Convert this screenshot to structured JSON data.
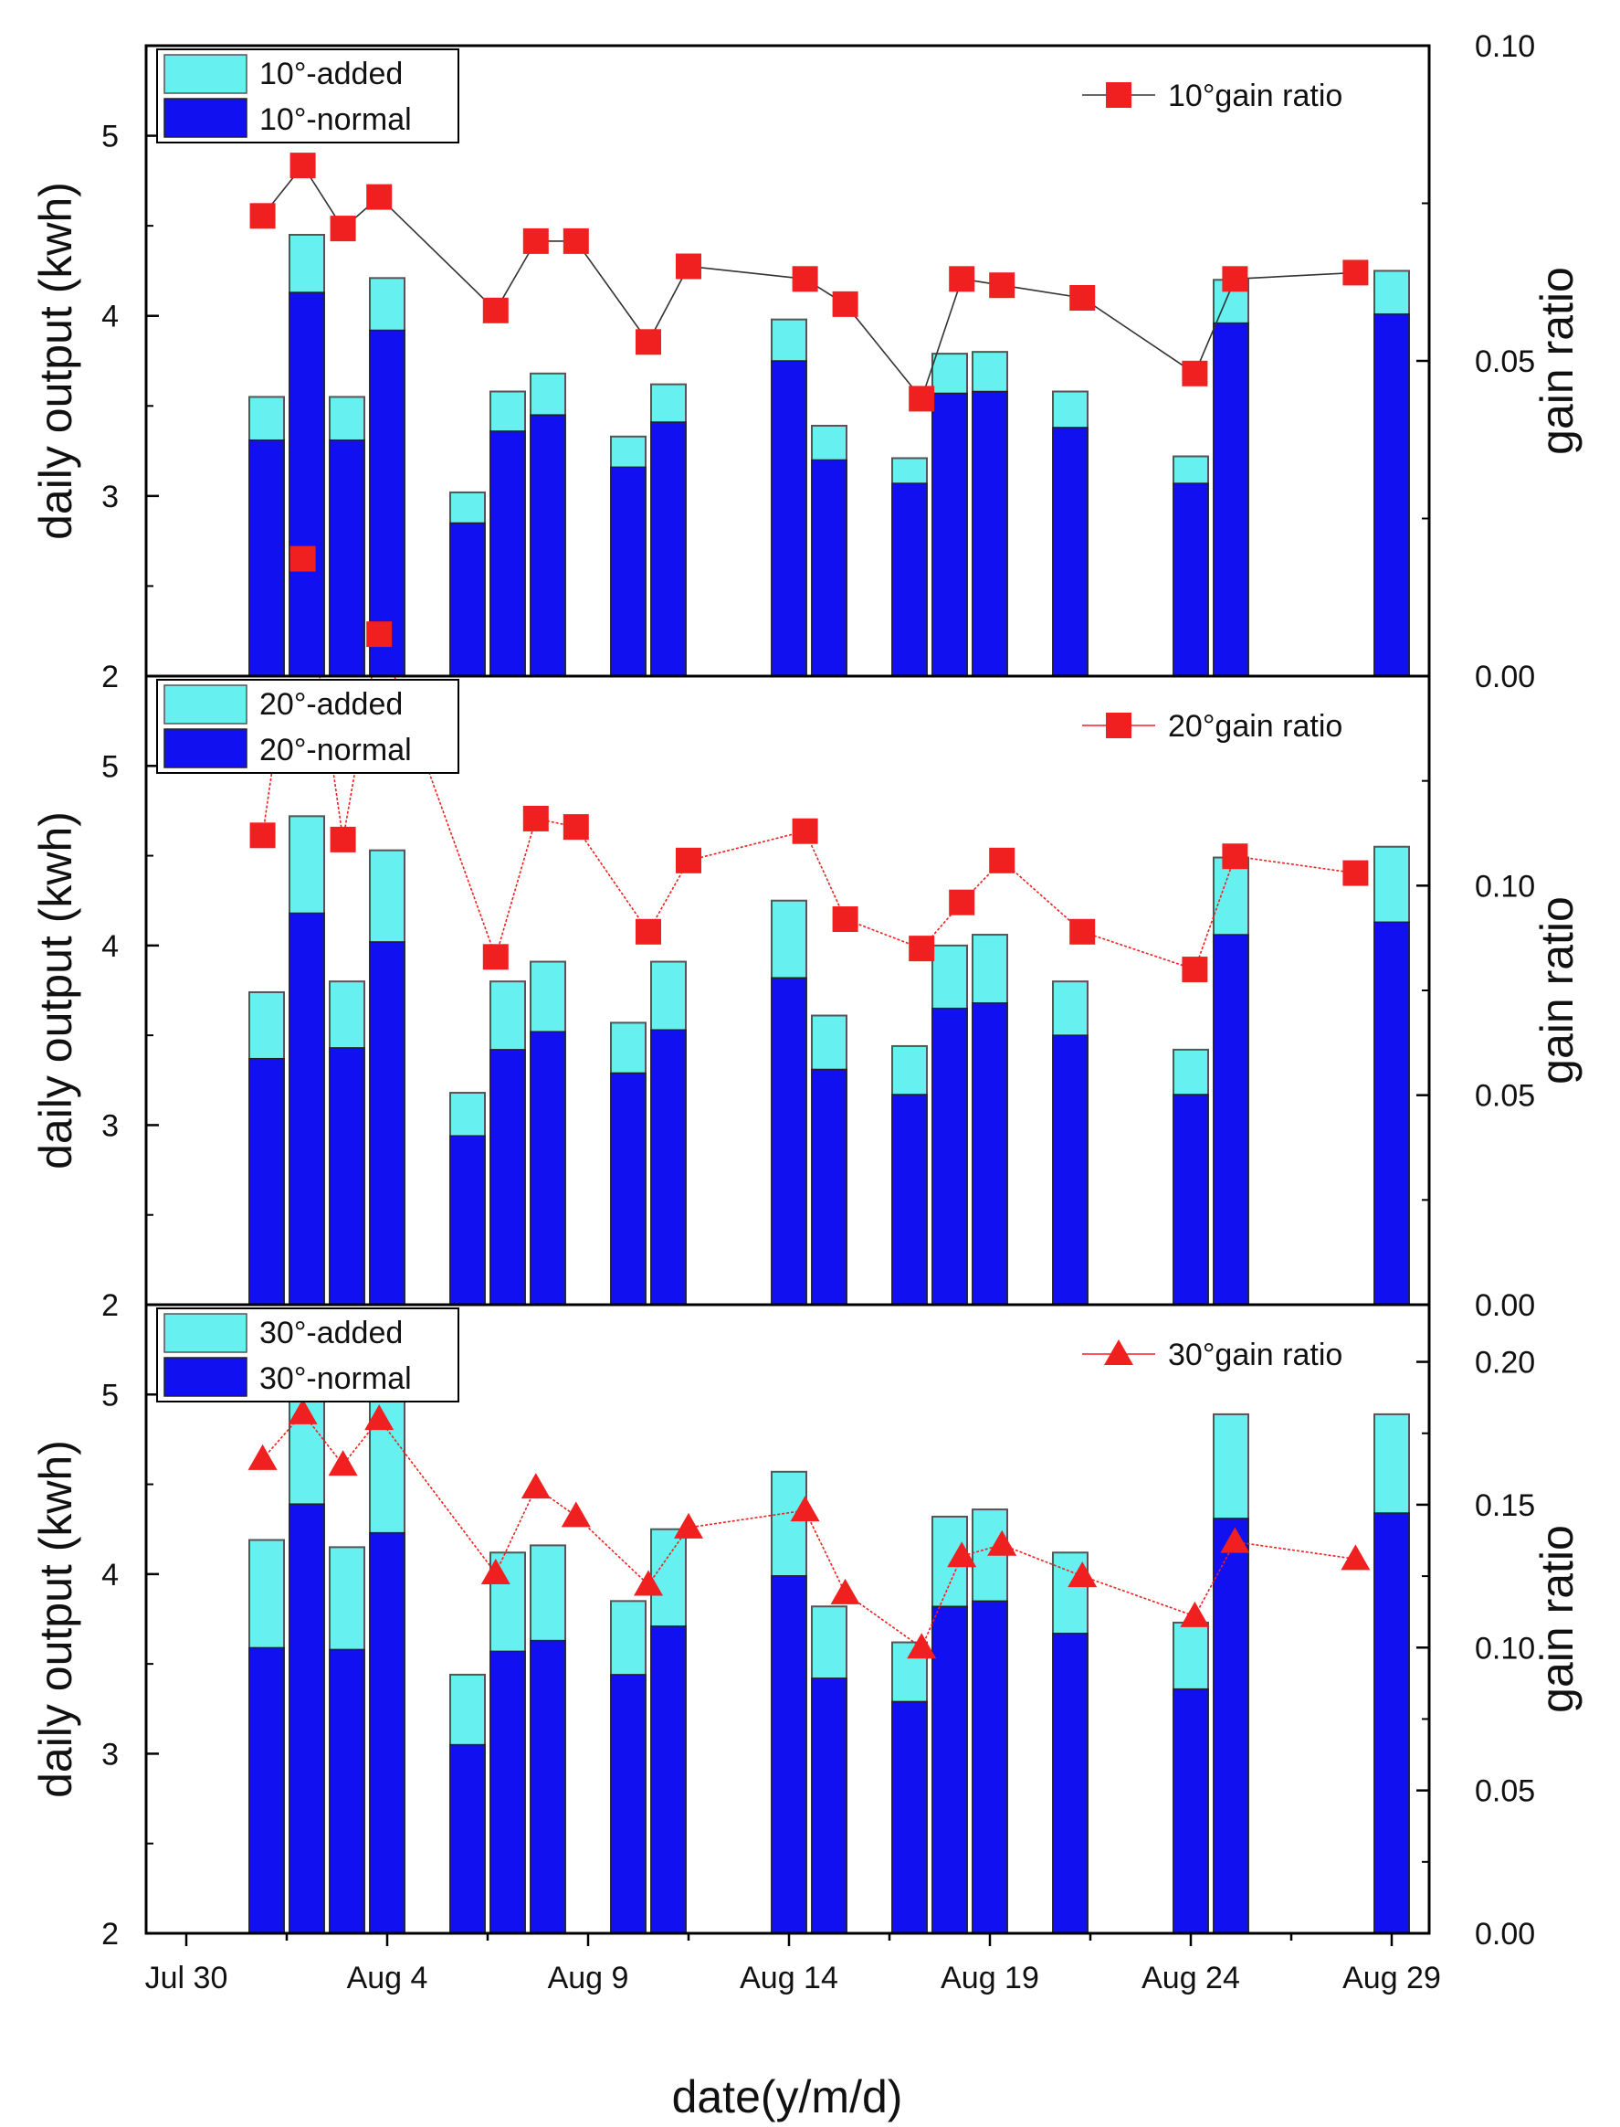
{
  "figure": {
    "xlabel": "date(y/m/d)",
    "x_tick_labels": [
      "Jul 30",
      "Aug 4",
      "Aug 9",
      "Aug 14",
      "Aug 19",
      "Aug 24",
      "Aug 29"
    ],
    "x_tick_values": [
      0,
      5,
      10,
      15,
      20,
      25,
      30
    ],
    "colors": {
      "added": "#66f0ef",
      "normal": "#1010f0",
      "gain": "#f02020",
      "gain_line_top": "#333333"
    }
  },
  "chart_data": [
    {
      "type": "bar",
      "panel": "10°",
      "ylabel": "daily output (kwh)",
      "y2label": "gain ratio",
      "ylim": [
        2,
        5.5
      ],
      "y_ticks": [
        2,
        3,
        4,
        5
      ],
      "y2lim": [
        0,
        0.1
      ],
      "y2_ticks": [
        "0.00",
        "0.05",
        "0.10"
      ],
      "legend": {
        "added": "10°-added",
        "normal": "10°-normal",
        "gain": "10°gain ratio"
      },
      "gain_marker": "square",
      "x": [
        2,
        3,
        4,
        5,
        7,
        8,
        9,
        11,
        12,
        15,
        16,
        18,
        19,
        20,
        22,
        25,
        26,
        30
      ],
      "totals": [
        3.55,
        4.45,
        3.55,
        4.21,
        3.02,
        3.58,
        3.68,
        3.33,
        3.62,
        3.98,
        3.39,
        3.21,
        3.79,
        3.8,
        3.58,
        3.22,
        4.2,
        4.25
      ],
      "normal": [
        3.31,
        4.13,
        3.31,
        3.92,
        2.85,
        3.36,
        3.45,
        3.16,
        3.41,
        3.75,
        3.2,
        3.07,
        3.57,
        3.58,
        3.38,
        3.07,
        3.96,
        4.01
      ],
      "gain_x": [
        1.9,
        2.9,
        3.9,
        4.8,
        7.7,
        8.7,
        9.7,
        11.5,
        12.5,
        15.4,
        16.4,
        18.3,
        19.3,
        20.3,
        22.3,
        25.1,
        26.1,
        29.1
      ],
      "gain_ratio": [
        0.073,
        0.081,
        0.071,
        0.076,
        0.058,
        0.069,
        0.069,
        0.053,
        0.065,
        0.063,
        0.059,
        0.044,
        0.063,
        0.062,
        0.06,
        0.048,
        0.063,
        0.064
      ]
    },
    {
      "type": "bar",
      "panel": "20°",
      "ylabel": "daily output (kwh)",
      "y2label": "gain ratio",
      "ylim": [
        2,
        5.5
      ],
      "y_ticks": [
        2,
        3,
        4,
        5
      ],
      "y2lim": [
        0,
        0.15
      ],
      "y2_ticks": [
        "0.00",
        "0.05",
        "0.10"
      ],
      "legend": {
        "added": "20°-added",
        "normal": "20°-normal",
        "gain": "20°gain ratio"
      },
      "gain_marker": "square",
      "x": [
        2,
        3,
        4,
        5,
        7,
        8,
        9,
        11,
        12,
        15,
        16,
        18,
        19,
        20,
        22,
        25,
        26,
        30
      ],
      "totals": [
        3.74,
        4.72,
        3.8,
        4.53,
        3.18,
        3.8,
        3.91,
        3.57,
        3.91,
        4.25,
        3.61,
        3.44,
        4.0,
        4.06,
        3.8,
        3.42,
        4.49,
        4.55
      ],
      "normal": [
        3.37,
        4.18,
        3.43,
        4.02,
        2.94,
        3.42,
        3.52,
        3.29,
        3.53,
        3.82,
        3.31,
        3.17,
        3.65,
        3.68,
        3.5,
        3.17,
        4.06,
        4.13
      ],
      "gain_x": [
        1.9,
        2.9,
        3.9,
        4.8,
        7.7,
        8.7,
        9.7,
        11.5,
        12.5,
        15.4,
        16.4,
        18.3,
        19.3,
        20.3,
        22.3,
        25.1,
        26.1,
        29.1
      ],
      "gain_ratio": [
        0.112,
        0.178,
        0.111,
        0.16,
        0.083,
        0.116,
        0.114,
        0.089,
        0.106,
        0.113,
        0.092,
        0.085,
        0.096,
        0.106,
        0.089,
        0.08,
        0.107,
        0.103
      ]
    },
    {
      "type": "bar",
      "panel": "30°",
      "ylabel": "daily output (kwh)",
      "y2label": "gain ratio",
      "ylim": [
        2,
        5.5
      ],
      "y_ticks": [
        2,
        3,
        4,
        5
      ],
      "y2lim": [
        0,
        0.22
      ],
      "y2_ticks": [
        "0.00",
        "0.05",
        "0.10",
        "0.15",
        "0.20"
      ],
      "legend": {
        "added": "30°-added",
        "normal": "30°-normal",
        "gain": "30°gain ratio"
      },
      "gain_marker": "triangle",
      "x": [
        2,
        3,
        4,
        5,
        7,
        8,
        9,
        11,
        12,
        15,
        16,
        18,
        19,
        20,
        22,
        25,
        26,
        30
      ],
      "totals": [
        4.19,
        5.0,
        4.15,
        5.0,
        3.44,
        4.12,
        4.16,
        3.85,
        4.25,
        4.57,
        3.82,
        3.62,
        4.32,
        4.36,
        4.12,
        3.73,
        4.89,
        4.89
      ],
      "normal": [
        3.59,
        4.39,
        3.58,
        4.23,
        3.05,
        3.57,
        3.63,
        3.44,
        3.71,
        3.99,
        3.42,
        3.29,
        3.82,
        3.85,
        3.67,
        3.36,
        4.31,
        4.34
      ],
      "gain_x": [
        1.9,
        2.9,
        3.9,
        4.8,
        7.7,
        8.7,
        9.7,
        11.5,
        12.5,
        15.4,
        16.4,
        18.3,
        19.3,
        20.3,
        22.3,
        25.1,
        26.1,
        29.1
      ],
      "gain_ratio": [
        0.166,
        0.182,
        0.164,
        0.18,
        0.126,
        0.156,
        0.146,
        0.122,
        0.142,
        0.148,
        0.119,
        0.1,
        0.132,
        0.136,
        0.125,
        0.111,
        0.137,
        0.131
      ]
    }
  ]
}
